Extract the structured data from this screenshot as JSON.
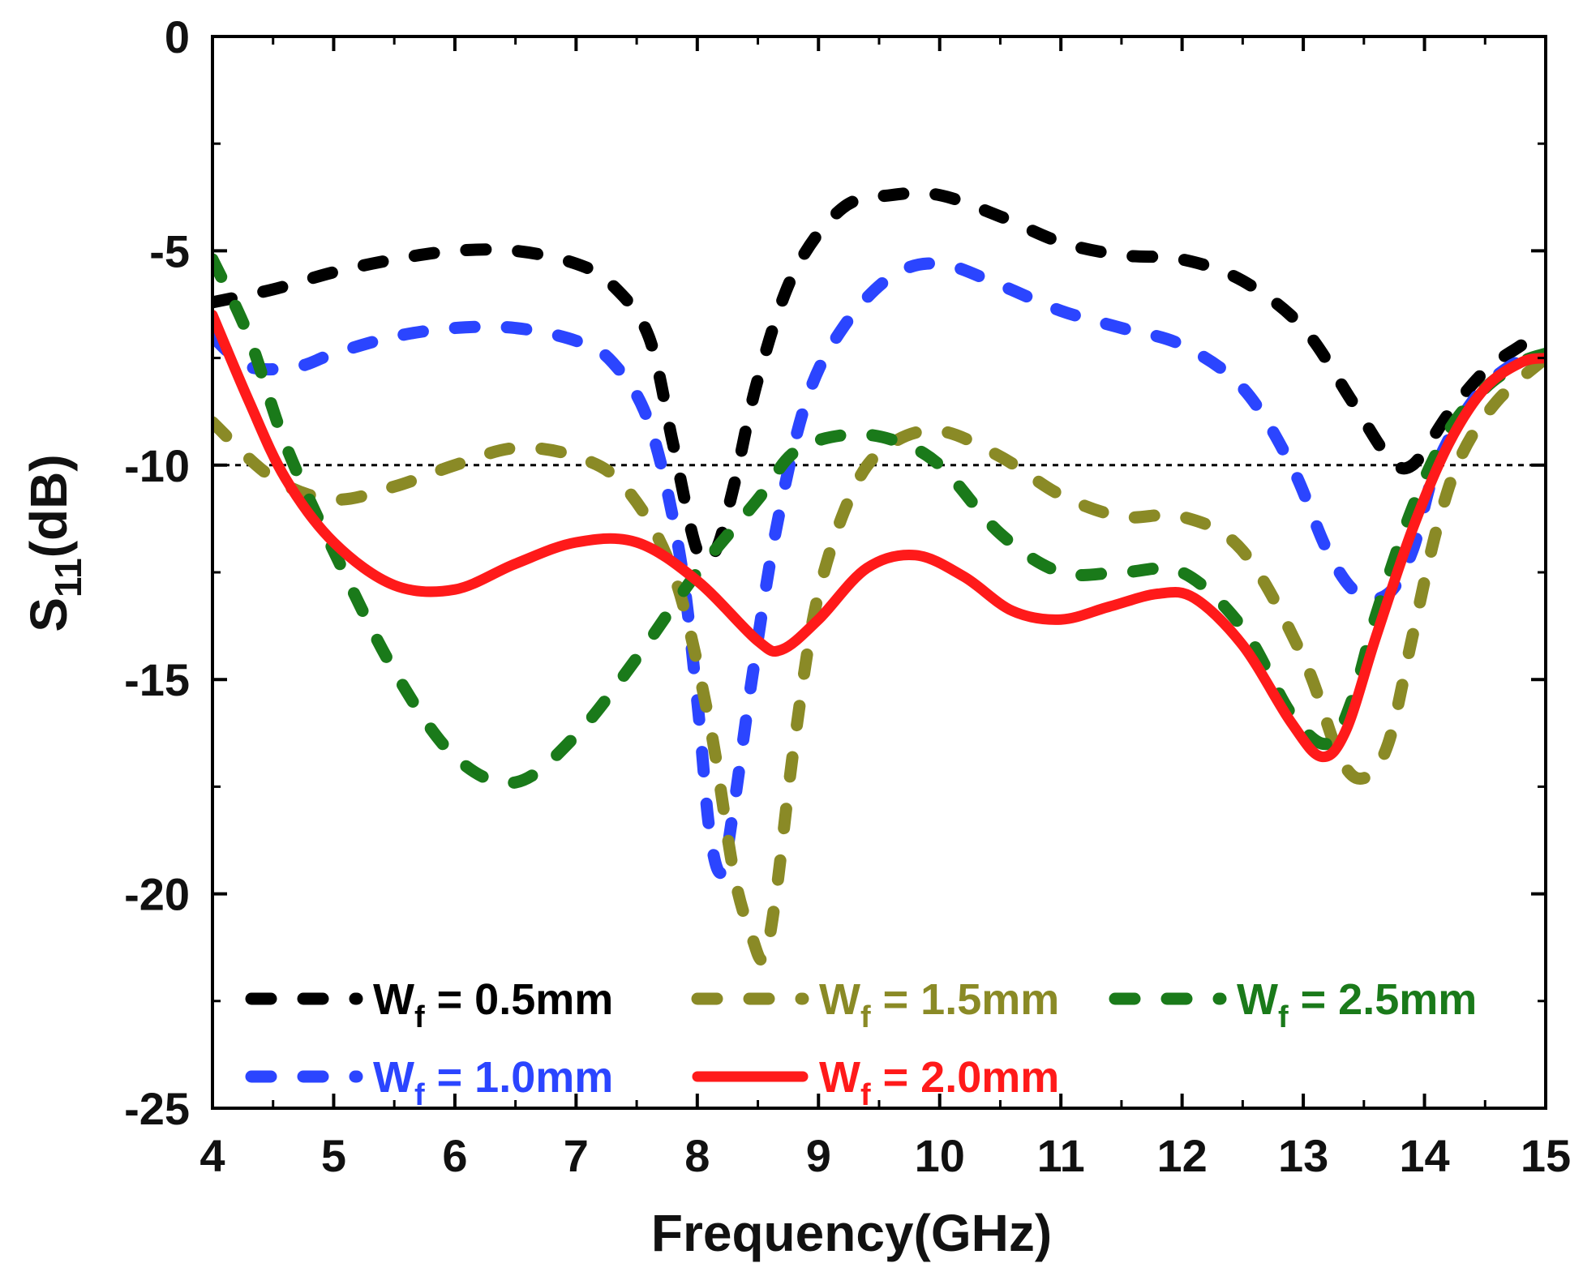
{
  "chart_data": {
    "type": "line",
    "xlabel": "Frequency(GHz)",
    "ylabel_main": "S",
    "ylabel_sub": "11",
    "ylabel_unit": "(dB)",
    "xlim": [
      4,
      15
    ],
    "ylim": [
      -25,
      0
    ],
    "xticks": [
      4,
      5,
      6,
      7,
      8,
      9,
      10,
      11,
      12,
      13,
      14,
      15
    ],
    "yticks": [
      0,
      -5,
      -10,
      -15,
      -20,
      -25
    ],
    "reference_line": {
      "y": -10,
      "style": "dotted",
      "color": "#000000"
    },
    "legend_position": "bottom-left inside",
    "series": [
      {
        "name": "Wf = 0.5mm",
        "label_main": "W",
        "label_sub": "f",
        "label_rest": " = 0.5mm",
        "color": "#000000",
        "style": "dashed",
        "x": [
          4.0,
          4.5,
          5.0,
          5.5,
          6.0,
          6.5,
          7.0,
          7.3,
          7.6,
          7.8,
          8.0,
          8.15,
          8.3,
          8.5,
          8.8,
          9.2,
          9.6,
          10.0,
          10.5,
          11.0,
          11.5,
          12.0,
          12.5,
          13.0,
          13.4,
          13.7,
          13.9,
          14.2,
          14.5,
          14.8,
          15.0
        ],
        "y": [
          -6.2,
          -5.9,
          -5.5,
          -5.2,
          -5.0,
          -5.0,
          -5.3,
          -5.8,
          -7.0,
          -9.5,
          -12.0,
          -12.0,
          -10.5,
          -8.0,
          -5.5,
          -4.0,
          -3.7,
          -3.7,
          -4.2,
          -4.8,
          -5.1,
          -5.2,
          -5.7,
          -6.8,
          -8.5,
          -9.8,
          -10.0,
          -8.8,
          -7.8,
          -7.2,
          -6.8
        ],
        "points": [
          [
            4.0,
            -6.2
          ],
          [
            4.5,
            -5.9
          ],
          [
            5.0,
            -5.5
          ],
          [
            5.5,
            -5.2
          ],
          [
            6.0,
            -5.0
          ],
          [
            6.5,
            -5.0
          ],
          [
            7.0,
            -5.3
          ],
          [
            7.3,
            -5.8
          ],
          [
            7.6,
            -7.0
          ],
          [
            7.8,
            -9.5
          ],
          [
            8.0,
            -12.0
          ],
          [
            8.15,
            -12.0
          ],
          [
            8.3,
            -10.5
          ],
          [
            8.5,
            -8.0
          ],
          [
            8.8,
            -5.5
          ],
          [
            9.2,
            -4.0
          ],
          [
            9.6,
            -3.7
          ],
          [
            10.0,
            -3.7
          ],
          [
            10.5,
            -4.2
          ],
          [
            11.0,
            -4.8
          ],
          [
            11.5,
            -5.1
          ],
          [
            12.0,
            -5.2
          ],
          [
            12.5,
            -5.7
          ],
          [
            13.0,
            -6.8
          ],
          [
            13.4,
            -8.5
          ],
          [
            13.7,
            -9.8
          ],
          [
            13.9,
            -10.0
          ],
          [
            14.2,
            -8.8
          ],
          [
            14.5,
            -7.8
          ],
          [
            14.8,
            -7.2
          ],
          [
            15.0,
            -6.8
          ]
        ]
      },
      {
        "name": "Wf = 1.0mm",
        "label_main": "W",
        "label_sub": "f",
        "label_rest": " = 1.0mm",
        "color": "#2b45ff",
        "style": "dashed",
        "points": [
          [
            4.0,
            -7.0
          ],
          [
            4.3,
            -7.7
          ],
          [
            4.7,
            -7.7
          ],
          [
            5.0,
            -7.4
          ],
          [
            5.5,
            -7.0
          ],
          [
            6.0,
            -6.8
          ],
          [
            6.5,
            -6.8
          ],
          [
            7.0,
            -7.1
          ],
          [
            7.3,
            -7.6
          ],
          [
            7.6,
            -9.0
          ],
          [
            7.85,
            -12.0
          ],
          [
            8.0,
            -15.5
          ],
          [
            8.1,
            -18.5
          ],
          [
            8.2,
            -19.5
          ],
          [
            8.3,
            -18.0
          ],
          [
            8.45,
            -15.0
          ],
          [
            8.65,
            -11.5
          ],
          [
            8.9,
            -8.5
          ],
          [
            9.2,
            -6.8
          ],
          [
            9.6,
            -5.6
          ],
          [
            10.0,
            -5.3
          ],
          [
            10.5,
            -5.8
          ],
          [
            11.0,
            -6.4
          ],
          [
            11.5,
            -6.8
          ],
          [
            12.0,
            -7.2
          ],
          [
            12.5,
            -8.2
          ],
          [
            12.9,
            -10.0
          ],
          [
            13.2,
            -12.0
          ],
          [
            13.45,
            -13.0
          ],
          [
            13.7,
            -13.0
          ],
          [
            13.9,
            -12.0
          ],
          [
            14.1,
            -10.0
          ],
          [
            14.4,
            -8.5
          ],
          [
            14.7,
            -7.7
          ],
          [
            15.0,
            -7.4
          ]
        ]
      },
      {
        "name": "Wf = 1.5mm",
        "label_main": "W",
        "label_sub": "f",
        "label_rest": " = 1.5mm",
        "color": "#8a8a26",
        "style": "dashed",
        "points": [
          [
            4.0,
            -9.0
          ],
          [
            4.5,
            -10.3
          ],
          [
            5.0,
            -10.8
          ],
          [
            5.5,
            -10.5
          ],
          [
            6.0,
            -10.0
          ],
          [
            6.5,
            -9.6
          ],
          [
            7.0,
            -9.8
          ],
          [
            7.4,
            -10.5
          ],
          [
            7.8,
            -12.5
          ],
          [
            8.1,
            -16.0
          ],
          [
            8.3,
            -19.5
          ],
          [
            8.45,
            -21.0
          ],
          [
            8.55,
            -21.5
          ],
          [
            8.65,
            -20.0
          ],
          [
            8.8,
            -16.5
          ],
          [
            9.0,
            -13.0
          ],
          [
            9.3,
            -10.5
          ],
          [
            9.6,
            -9.5
          ],
          [
            10.0,
            -9.2
          ],
          [
            10.5,
            -9.8
          ],
          [
            11.0,
            -10.7
          ],
          [
            11.5,
            -11.2
          ],
          [
            12.0,
            -11.2
          ],
          [
            12.5,
            -12.0
          ],
          [
            13.0,
            -14.5
          ],
          [
            13.3,
            -16.8
          ],
          [
            13.5,
            -17.3
          ],
          [
            13.7,
            -16.5
          ],
          [
            13.9,
            -14.0
          ],
          [
            14.1,
            -11.5
          ],
          [
            14.3,
            -9.8
          ],
          [
            14.6,
            -8.5
          ],
          [
            15.0,
            -7.5
          ]
        ]
      },
      {
        "name": "Wf = 2.0mm",
        "label_main": "W",
        "label_sub": "f",
        "label_rest": " = 2.0mm",
        "color": "#ff1a1a",
        "style": "solid",
        "points": [
          [
            4.0,
            -6.5
          ],
          [
            4.3,
            -8.5
          ],
          [
            4.6,
            -10.3
          ],
          [
            5.0,
            -11.8
          ],
          [
            5.5,
            -12.8
          ],
          [
            6.0,
            -12.9
          ],
          [
            6.5,
            -12.3
          ],
          [
            7.0,
            -11.8
          ],
          [
            7.5,
            -11.8
          ],
          [
            8.0,
            -12.7
          ],
          [
            8.5,
            -14.1
          ],
          [
            8.7,
            -14.3
          ],
          [
            9.0,
            -13.6
          ],
          [
            9.4,
            -12.4
          ],
          [
            9.8,
            -12.1
          ],
          [
            10.2,
            -12.6
          ],
          [
            10.6,
            -13.4
          ],
          [
            11.0,
            -13.6
          ],
          [
            11.4,
            -13.3
          ],
          [
            11.8,
            -13.0
          ],
          [
            12.1,
            -13.1
          ],
          [
            12.5,
            -14.2
          ],
          [
            12.9,
            -16.0
          ],
          [
            13.15,
            -16.8
          ],
          [
            13.35,
            -16.2
          ],
          [
            13.6,
            -14.0
          ],
          [
            13.9,
            -11.5
          ],
          [
            14.2,
            -9.5
          ],
          [
            14.5,
            -8.2
          ],
          [
            14.8,
            -7.6
          ],
          [
            15.0,
            -7.5
          ]
        ]
      },
      {
        "name": "Wf = 2.5mm",
        "label_main": "W",
        "label_sub": "f",
        "label_rest": " = 2.5mm",
        "color": "#1a7a1a",
        "style": "dashed",
        "points": [
          [
            4.0,
            -5.2
          ],
          [
            4.3,
            -7.0
          ],
          [
            4.6,
            -9.5
          ],
          [
            5.0,
            -12.0
          ],
          [
            5.5,
            -14.8
          ],
          [
            6.0,
            -16.8
          ],
          [
            6.5,
            -17.4
          ],
          [
            7.0,
            -16.3
          ],
          [
            7.5,
            -14.5
          ],
          [
            8.0,
            -12.5
          ],
          [
            8.5,
            -10.8
          ],
          [
            8.8,
            -9.7
          ],
          [
            9.2,
            -9.3
          ],
          [
            9.6,
            -9.4
          ],
          [
            10.0,
            -10.0
          ],
          [
            10.5,
            -11.6
          ],
          [
            11.0,
            -12.5
          ],
          [
            11.5,
            -12.5
          ],
          [
            12.0,
            -12.5
          ],
          [
            12.5,
            -13.8
          ],
          [
            12.9,
            -15.8
          ],
          [
            13.2,
            -16.5
          ],
          [
            13.4,
            -15.5
          ],
          [
            13.6,
            -13.5
          ],
          [
            13.9,
            -11.0
          ],
          [
            14.2,
            -9.2
          ],
          [
            14.5,
            -8.2
          ],
          [
            14.8,
            -7.6
          ],
          [
            15.0,
            -7.4
          ]
        ]
      }
    ]
  }
}
